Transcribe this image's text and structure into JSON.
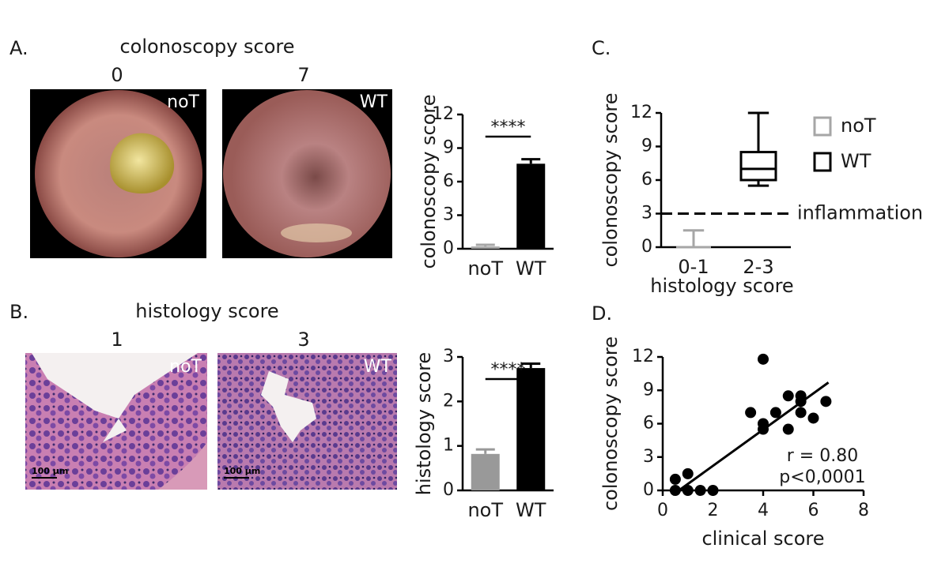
{
  "figure": {
    "panel_labels": [
      "A.",
      "B.",
      "C.",
      "D."
    ],
    "sections": [
      {
        "title": "colonoscopy score",
        "images": [
          {
            "score": "0",
            "tag": "noT"
          },
          {
            "score": "7",
            "tag": "WT"
          }
        ]
      },
      {
        "title": "histology score",
        "images": [
          {
            "score": "1",
            "tag": "noT",
            "scale_bar": "100 µm"
          },
          {
            "score": "3",
            "tag": "WT",
            "scale_bar": "100 µm"
          }
        ]
      }
    ]
  },
  "chart_data": [
    {
      "type": "bar",
      "ylabel": "colonoscopy score",
      "categories": [
        "noT",
        "WT"
      ],
      "values": [
        0.2,
        7.6
      ],
      "errors": [
        0.15,
        0.4
      ],
      "colors": [
        "#a6a6a6",
        "#000000"
      ],
      "ylim": [
        0,
        12
      ],
      "yticks": [
        0,
        3,
        6,
        9,
        12
      ],
      "significance": "****"
    },
    {
      "type": "bar",
      "ylabel": "histology score",
      "categories": [
        "noT",
        "WT"
      ],
      "values": [
        0.82,
        2.75
      ],
      "errors": [
        0.1,
        0.1
      ],
      "colors": [
        "#999999",
        "#000000"
      ],
      "ylim": [
        0,
        3
      ],
      "yticks": [
        0,
        1,
        2,
        3
      ],
      "significance": "****"
    },
    {
      "type": "box",
      "ylabel": "colonoscopy score",
      "xlabel": "histology score",
      "categories": [
        "0-1",
        "2-3"
      ],
      "series": [
        {
          "name": "noT",
          "color": "#a6a6a6",
          "min": 0,
          "q1": 0,
          "median": 0,
          "q3": 0,
          "max": 1.5
        },
        {
          "name": "WT",
          "color": "#000000",
          "min": 5.5,
          "q1": 6,
          "median": 7,
          "q3": 8.5,
          "max": 12
        }
      ],
      "ylim": [
        0,
        12
      ],
      "yticks": [
        0,
        3,
        6,
        9,
        12
      ],
      "reference_line": {
        "value": 3,
        "label": "inflammation"
      }
    },
    {
      "type": "scatter",
      "ylabel": "colonoscopy score",
      "xlabel": "clinical score",
      "x": [
        0.5,
        0.5,
        1,
        1,
        1.5,
        2,
        4,
        3.5,
        4,
        4,
        4.5,
        5,
        5,
        5.5,
        5.5,
        5.5,
        6,
        6.5
      ],
      "y": [
        1,
        0,
        1.5,
        0,
        0,
        0,
        11.8,
        7,
        6,
        5.5,
        7,
        8.5,
        5.5,
        8.5,
        8,
        7,
        6.5,
        8
      ],
      "fit": {
        "x": [
          0.4,
          6.6
        ],
        "y": [
          -0.4,
          9.7
        ]
      },
      "xlim": [
        0,
        8
      ],
      "xticks": [
        0,
        2,
        4,
        6,
        8
      ],
      "ylim": [
        0,
        12
      ],
      "yticks": [
        0,
        3,
        6,
        9,
        12
      ],
      "annotations": [
        "r = 0.80",
        "p<0,0001"
      ]
    }
  ]
}
